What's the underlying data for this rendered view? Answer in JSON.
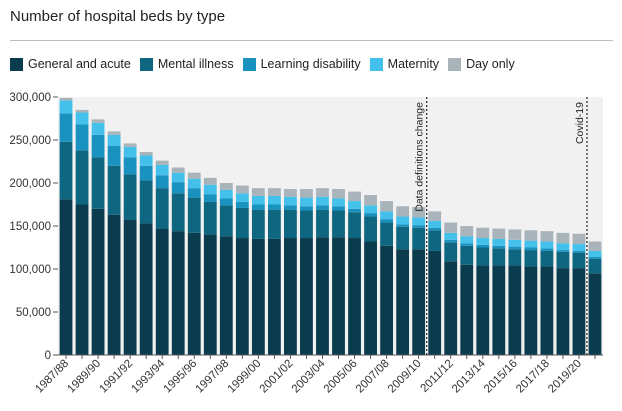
{
  "chart_data": {
    "type": "bar",
    "title": "Number of hospital beds by type",
    "xlabel": "",
    "ylabel": "",
    "ylim": [
      0,
      300000
    ],
    "yticks": [
      0,
      50000,
      100000,
      150000,
      200000,
      250000,
      300000
    ],
    "ytick_labels": [
      "0",
      "50,000",
      "100,000",
      "150,000",
      "200,000",
      "250,000",
      "300,000"
    ],
    "grid": false,
    "legend_position": "top",
    "stacked": true,
    "categories": [
      "1987/88",
      "1988/89",
      "1989/90",
      "1990/91",
      "1991/92",
      "1992/93",
      "1993/94",
      "1994/95",
      "1995/96",
      "1996/97",
      "1997/98",
      "1998/99",
      "1999/00",
      "2000/01",
      "2001/02",
      "2002/03",
      "2003/04",
      "2004/05",
      "2005/06",
      "2006/07",
      "2007/08",
      "2008/09",
      "2009/10",
      "2010/11",
      "2011/12",
      "2012/13",
      "2013/14",
      "2014/15",
      "2015/16",
      "2016/17",
      "2017/18",
      "2018/19",
      "2019/20",
      "2020/21"
    ],
    "xtick_labels": [
      "1987/88",
      "1989/90",
      "1991/92",
      "1993/94",
      "1995/96",
      "1997/98",
      "1999/00",
      "2001/02",
      "2003/04",
      "2005/06",
      "2007/08",
      "2009/10",
      "2011/12",
      "2013/14",
      "2015/16",
      "2017/18",
      "2019/20"
    ],
    "series": [
      {
        "name": "General and acute",
        "color": "#0b3c4d",
        "values": [
          181000,
          175000,
          170000,
          163000,
          157000,
          153000,
          147000,
          144000,
          142000,
          140000,
          138000,
          136000,
          135000,
          135000,
          136000,
          136000,
          137000,
          137000,
          136000,
          132000,
          127000,
          123000,
          123000,
          121000,
          109000,
          105000,
          104000,
          104000,
          104000,
          103000,
          103000,
          101000,
          101000,
          95000
        ]
      },
      {
        "name": "Mental illness",
        "color": "#0f6680",
        "values": [
          67000,
          63000,
          60000,
          57000,
          53000,
          50000,
          47000,
          44000,
          41000,
          38000,
          36000,
          35000,
          34000,
          34000,
          33000,
          32000,
          32000,
          31000,
          30000,
          29000,
          27000,
          26000,
          25000,
          24000,
          22000,
          22000,
          21000,
          20000,
          19000,
          19000,
          18000,
          19000,
          18000,
          17000
        ]
      },
      {
        "name": "Learning disability",
        "color": "#1a92c0",
        "values": [
          33000,
          30000,
          26000,
          23000,
          20000,
          17000,
          15000,
          13000,
          11000,
          9000,
          8000,
          7000,
          6000,
          6000,
          5000,
          5000,
          5000,
          5000,
          4000,
          4000,
          4000,
          3000,
          3000,
          3000,
          3000,
          3000,
          3000,
          3000,
          3000,
          3000,
          3000,
          2000,
          2000,
          2000
        ]
      },
      {
        "name": "Maternity",
        "color": "#43c1ea",
        "values": [
          15000,
          14000,
          14000,
          13000,
          12000,
          12000,
          12000,
          11000,
          11000,
          11000,
          10000,
          10000,
          10000,
          10000,
          10000,
          10000,
          10000,
          9000,
          9000,
          9000,
          9000,
          9000,
          9000,
          8000,
          8000,
          8000,
          8000,
          8000,
          8000,
          8000,
          8000,
          8000,
          8000,
          7000
        ]
      },
      {
        "name": "Day only",
        "color": "#a9b3ba",
        "values": [
          3000,
          3000,
          4000,
          4000,
          4000,
          4000,
          5000,
          6000,
          7000,
          8000,
          8000,
          9000,
          9000,
          9000,
          9000,
          10000,
          10000,
          11000,
          11000,
          12000,
          12000,
          12000,
          12000,
          11000,
          12000,
          12000,
          12000,
          12000,
          12000,
          12000,
          12000,
          12000,
          12000,
          11000
        ]
      }
    ],
    "annotations": [
      {
        "text": "Data definitions change",
        "after_category": "2009/10"
      },
      {
        "text": "Covid-19",
        "after_category": "2019/20"
      }
    ]
  }
}
